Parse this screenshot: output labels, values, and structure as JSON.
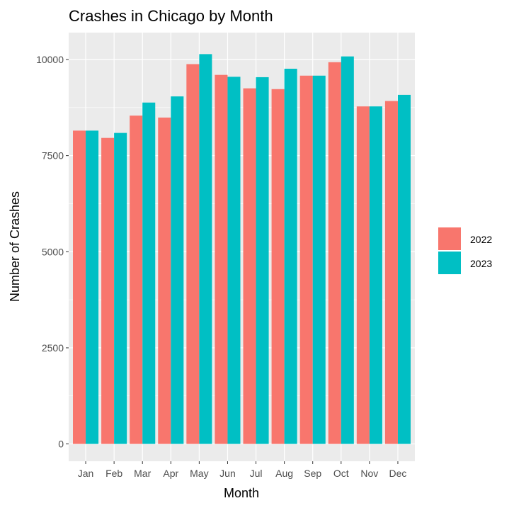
{
  "chart_data": {
    "type": "bar",
    "title": "Crashes in Chicago by Month",
    "xlabel": "Month",
    "ylabel": "Number of Crashes",
    "categories": [
      "Jan",
      "Feb",
      "Mar",
      "Apr",
      "May",
      "Jun",
      "Jul",
      "Aug",
      "Sep",
      "Oct",
      "Nov",
      "Dec"
    ],
    "series": [
      {
        "name": "2022",
        "color": "#F8766D",
        "values": [
          8150,
          7960,
          8540,
          8490,
          9880,
          9600,
          9250,
          9230,
          9580,
          9930,
          8780,
          8920
        ]
      },
      {
        "name": "2023",
        "color": "#00BFC4",
        "values": [
          8150,
          8090,
          8880,
          9040,
          10140,
          9550,
          9540,
          9760,
          9580,
          10080,
          8780,
          9080
        ]
      }
    ],
    "ylim": [
      -450,
      10700
    ],
    "yticks": [
      0,
      2500,
      5000,
      7500,
      10000
    ],
    "grid": true,
    "legend_position": "right",
    "panel_background": "#EBEBEB"
  }
}
